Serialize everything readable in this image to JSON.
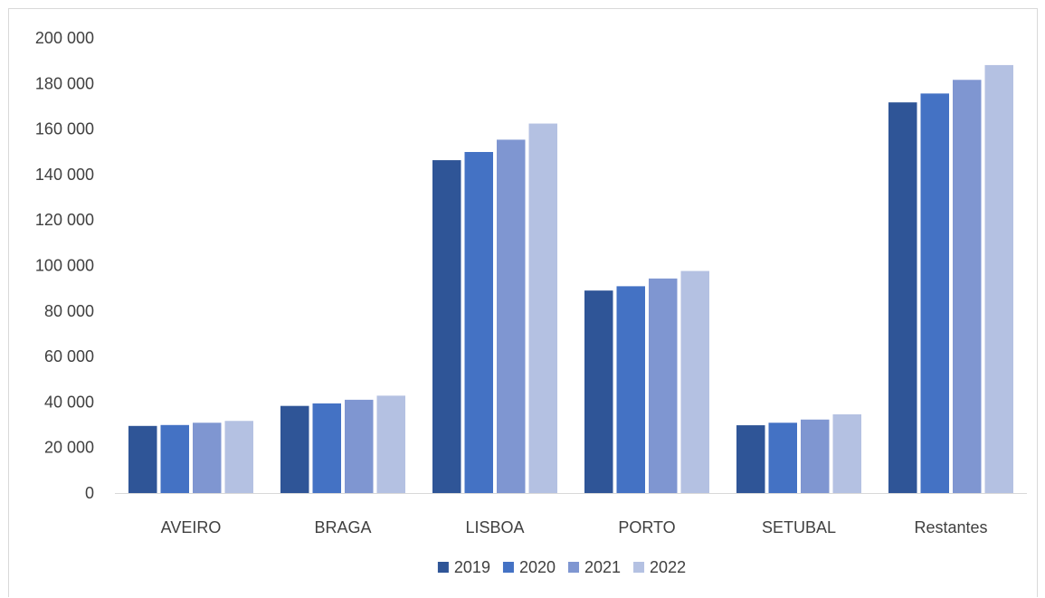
{
  "chart_data": {
    "type": "bar",
    "title": "",
    "xlabel": "",
    "ylabel": "",
    "categories": [
      "AVEIRO",
      "BRAGA",
      "LISBOA",
      "PORTO",
      "SETUBAL",
      "Restantes"
    ],
    "series": [
      {
        "name": "2019",
        "color": "#2f5597",
        "values": [
          29500,
          38300,
          146300,
          89000,
          29800,
          171700
        ]
      },
      {
        "name": "2020",
        "color": "#4472c4",
        "values": [
          29900,
          39400,
          149900,
          90900,
          30900,
          175600
        ]
      },
      {
        "name": "2021",
        "color": "#7f96d1",
        "values": [
          30900,
          41000,
          155300,
          94300,
          32300,
          181600
        ]
      },
      {
        "name": "2022",
        "color": "#b4c1e2",
        "values": [
          31700,
          42800,
          162400,
          97600,
          34600,
          188100
        ]
      }
    ],
    "ylim": [
      0,
      200000
    ],
    "yticks": [
      0,
      20000,
      40000,
      60000,
      80000,
      100000,
      120000,
      140000,
      160000,
      180000,
      200000
    ],
    "ytick_labels": [
      "0",
      "20 000",
      "40 000",
      "60 000",
      "80 000",
      "100 000",
      "120 000",
      "140 000",
      "160 000",
      "180 000",
      "200 000"
    ],
    "grid": false,
    "legend_position": "bottom"
  }
}
